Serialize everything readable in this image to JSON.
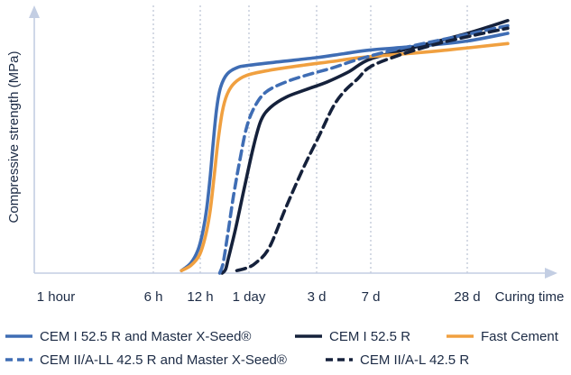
{
  "chart_data": {
    "type": "line",
    "title": "",
    "ylabel": "Compressive strength (MPa)",
    "xlabel": "Curing time",
    "x_ticks": [
      "1 hour",
      "6 h",
      "12 h",
      "1 day",
      "3 d",
      "7 d",
      "28 d"
    ],
    "y_range": [
      0,
      100
    ],
    "grid": "vertical dotted lines at each tick",
    "legend": "bottom",
    "series": [
      {
        "name": "CEM I 52.5 R and Master X-Seed®",
        "color": "#3f6db4",
        "dash": "solid",
        "points": [
          [
            1.6,
            1
          ],
          [
            1.8,
            4
          ],
          [
            1.95,
            9
          ],
          [
            2.05,
            16
          ],
          [
            2.13,
            25
          ],
          [
            2.2,
            37
          ],
          [
            2.27,
            52
          ],
          [
            2.34,
            65
          ],
          [
            2.42,
            73
          ],
          [
            2.55,
            78
          ],
          [
            2.75,
            80.5
          ],
          [
            3.0,
            81.5
          ],
          [
            3.5,
            83
          ],
          [
            4.0,
            84.5
          ],
          [
            4.5,
            86
          ],
          [
            5.0,
            87.5
          ],
          [
            5.5,
            89
          ],
          [
            6.0,
            91
          ],
          [
            6.42,
            94
          ]
        ]
      },
      {
        "name": "CEM I 52.5 R",
        "color": "#15213b",
        "dash": "solid",
        "points": [
          [
            2.45,
            0
          ],
          [
            2.52,
            1.5
          ],
          [
            2.58,
            6
          ],
          [
            2.72,
            17
          ],
          [
            2.9,
            33
          ],
          [
            3.07,
            50
          ],
          [
            3.18,
            60
          ],
          [
            3.32,
            65
          ],
          [
            3.55,
            69
          ],
          [
            3.85,
            72
          ],
          [
            4.2,
            75
          ],
          [
            4.6,
            79
          ],
          [
            5.0,
            84
          ],
          [
            5.5,
            89
          ],
          [
            6.0,
            94
          ],
          [
            6.42,
            99
          ]
        ]
      },
      {
        "name": "Fast Cement",
        "color": "#f0a040",
        "dash": "solid",
        "points": [
          [
            1.6,
            1
          ],
          [
            1.8,
            3
          ],
          [
            1.98,
            7
          ],
          [
            2.1,
            14
          ],
          [
            2.2,
            24
          ],
          [
            2.28,
            37
          ],
          [
            2.36,
            51
          ],
          [
            2.45,
            63
          ],
          [
            2.55,
            70
          ],
          [
            2.7,
            74.5
          ],
          [
            2.95,
            77.5
          ],
          [
            3.3,
            79.5
          ],
          [
            3.8,
            81.5
          ],
          [
            4.3,
            83
          ],
          [
            4.8,
            84.5
          ],
          [
            5.3,
            85.8
          ],
          [
            5.8,
            87.5
          ],
          [
            6.42,
            90
          ]
        ]
      },
      {
        "name": "CEM II/A-LL 42.5 R and Master X-Seed®",
        "color": "#3f6db4",
        "dash": "dashed",
        "points": [
          [
            2.4,
            0
          ],
          [
            2.47,
            4
          ],
          [
            2.57,
            16
          ],
          [
            2.68,
            30
          ],
          [
            2.82,
            45
          ],
          [
            2.95,
            57
          ],
          [
            3.08,
            65
          ],
          [
            3.25,
            71
          ],
          [
            3.55,
            75
          ],
          [
            3.9,
            78
          ],
          [
            4.3,
            80.5
          ],
          [
            4.8,
            84
          ],
          [
            5.3,
            88
          ],
          [
            5.8,
            92
          ],
          [
            6.42,
            97
          ]
        ]
      },
      {
        "name": "CEM II/A-L 42.5 R",
        "color": "#15213b",
        "dash": "dashed",
        "points": [
          [
            2.75,
            1
          ],
          [
            2.95,
            2
          ],
          [
            3.1,
            4
          ],
          [
            3.3,
            10
          ],
          [
            3.55,
            26
          ],
          [
            3.8,
            41
          ],
          [
            4.05,
            54
          ],
          [
            4.3,
            65
          ],
          [
            4.5,
            71
          ],
          [
            4.75,
            76
          ],
          [
            5.0,
            81
          ],
          [
            5.3,
            85.5
          ],
          [
            5.7,
            90
          ],
          [
            6.1,
            93.5
          ],
          [
            6.42,
            96
          ]
        ]
      }
    ]
  }
}
